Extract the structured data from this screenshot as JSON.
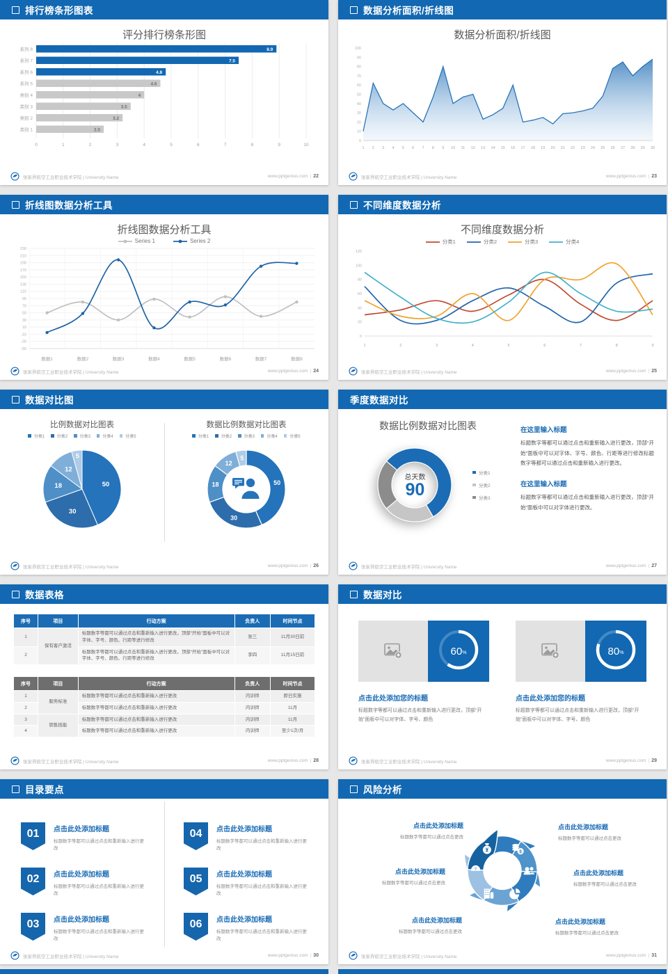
{
  "accent": "#1268b2",
  "footer": {
    "org": "张家界航空工业职业技术学院 | University Name",
    "site": "www.pptgenius.com",
    "sep": "|"
  },
  "slides": [
    {
      "header": "排行榜条形图表",
      "page": "22"
    },
    {
      "header": "数据分析面积/折线图",
      "page": "23"
    },
    {
      "header": "折线图数据分析工具",
      "page": "24"
    },
    {
      "header": "不同维度数据分析",
      "page": "25"
    },
    {
      "header": "数据对比图",
      "page": "26"
    },
    {
      "header": "季度数据对比",
      "page": "27",
      "blocks": [
        {
          "heading": "在这里输入标题",
          "body": "标题数字等都可以通过点击和重新输入进行更改，顶部“开始”面板中可以对字体、字号、颜色、行距等进行修改标题数字等都可以通过点击和重新输入进行更改。"
        },
        {
          "heading": "在这里输入标题",
          "body": "标题数字等都可以通过点击和重新输入进行更改，顶部“开始”面板中可以对字体进行更改。"
        }
      ]
    },
    {
      "header": "数据表格",
      "page": "28",
      "table1": {
        "columns": [
          "序号",
          "项目",
          "行动方案",
          "负责人",
          "时间节点"
        ],
        "rows": [
          {
            "no": "1",
            "project": "保有客户激活",
            "plan": "标题数字等都可以通过点击和重新输入进行更改，顶部“开始”面板中可以对字体、字号、颜色、行距等进行修改",
            "owner": "张三",
            "deadline": "11月30日前"
          },
          {
            "no": "2",
            "plan": "标题数字等都可以通过点击和重新输入进行更改，顶部“开始”面板中可以对字体、字号、颜色、行距等进行修改",
            "owner": "李四",
            "deadline": "11月15日前"
          }
        ]
      },
      "table2": {
        "columns": [
          "序号",
          "项目",
          "行动方案",
          "负责人",
          "时间节点"
        ],
        "rows": [
          {
            "no": "1",
            "project": "服务标准",
            "plan": "标题数字等都可以通过点击和重新输入进行更改",
            "owner": "内训师",
            "deadline": "即日实施"
          },
          {
            "no": "2",
            "plan": "标题数字等都可以通过点击和重新输入进行更改",
            "owner": "内训师",
            "deadline": "11月"
          },
          {
            "no": "3",
            "project": "销售技能",
            "plan": "标题数字等都可以通过点击和重新输入进行更改",
            "owner": "内训师",
            "deadline": "11月"
          },
          {
            "no": "4",
            "plan": "标题数字等都可以通过点击和重新输入进行更改",
            "owner": "内训师",
            "deadline": "至少1次/月"
          }
        ]
      }
    },
    {
      "header": "数据对比",
      "page": "29",
      "cards": [
        {
          "title": "点击此处添加您的标题",
          "body": "标题数字等都可以通过点击和重新输入进行更改，顶部“开始”面板中可以对字体、字号、颜色"
        },
        {
          "title": "点击此处添加您的标题",
          "body": "标题数字等都可以通过点击和重新输入进行更改，顶部“开始”面板中可以对字体、字号、颜色"
        }
      ]
    },
    {
      "header": "目录要点",
      "page": "30",
      "items": [
        {
          "num": "01",
          "title": "点击此处添加标题",
          "desc": "标题数字等都可以通过点击和重新输入进行更改"
        },
        {
          "num": "04",
          "title": "点击此处添加标题",
          "desc": "标题数字等都可以通过点击和重新输入进行更改"
        },
        {
          "num": "02",
          "title": "点击此处添加标题",
          "desc": "标题数字等都可以通过点击和重新输入进行更改"
        },
        {
          "num": "05",
          "title": "点击此处添加标题",
          "desc": "标题数字等都可以通过点击和重新输入进行更改"
        },
        {
          "num": "03",
          "title": "点击此处添加标题",
          "desc": "标题数字等都可以通过点击和重新输入进行更改"
        },
        {
          "num": "06",
          "title": "点击此处添加标题",
          "desc": "标题数字等都可以通过点击和重新输入进行更改"
        }
      ]
    },
    {
      "header": "风险分析",
      "page": "31",
      "items": [
        {
          "pos": "top-left",
          "icon": "money-bag-icon",
          "title": "点击此处添加标题",
          "desc": "标题数字等都可以通过点击更改"
        },
        {
          "pos": "top-right",
          "icon": "coins-icon",
          "title": "点击此处添加标题",
          "desc": "标题数字等都可以通过点击更改"
        },
        {
          "pos": "mid-left",
          "icon": "helmet-icon",
          "title": "点击此处添加标题",
          "desc": "标题数字等都可以通过点击更改"
        },
        {
          "pos": "mid-right",
          "icon": "people-icon",
          "title": "点击此处添加标题",
          "desc": "标题数字等都可以通过点击更改"
        },
        {
          "pos": "bottom-left",
          "icon": "building-icon",
          "title": "点击此处添加标题",
          "desc": "标题数字等都可以通过点击更改"
        },
        {
          "pos": "bottom-right",
          "icon": "pie-chart-icon",
          "title": "点击此处添加标题",
          "desc": "标题数字等都可以通过点击更改"
        }
      ]
    }
  ],
  "chart_data": [
    {
      "type": "bar",
      "orientation": "horizontal",
      "title": "评分排行榜条形图",
      "categories": [
        "系列 8",
        "系列 7",
        "系列 6",
        "系列 5",
        "类别 4",
        "类别 3",
        "类别 2",
        "类别 1"
      ],
      "values": [
        8.9,
        7.5,
        4.8,
        4.6,
        4,
        3.5,
        3.2,
        2.5
      ],
      "colors": [
        "#1268b2",
        "#1268b2",
        "#1268b2",
        "#c8c8c8",
        "#c8c8c8",
        "#c8c8c8",
        "#c8c8c8",
        "#c8c8c8"
      ],
      "xlim": [
        0,
        10
      ],
      "xticks": [
        0,
        1,
        2,
        3,
        4,
        5,
        6,
        7,
        8,
        9,
        10
      ],
      "grid": true
    },
    {
      "type": "area",
      "title": "数据分析面积/折线图",
      "x": [
        1,
        2,
        3,
        4,
        5,
        6,
        7,
        8,
        9,
        10,
        11,
        12,
        13,
        14,
        15,
        16,
        17,
        18,
        19,
        20,
        21,
        22,
        23,
        24,
        25,
        26,
        27,
        28,
        29,
        30
      ],
      "values": [
        10,
        62,
        40,
        33,
        40,
        30,
        20,
        47,
        80,
        40,
        47,
        50,
        23,
        28,
        35,
        60,
        20,
        22,
        25,
        18,
        29,
        30,
        32,
        35,
        48,
        78,
        85,
        70,
        80,
        88
      ],
      "ylim": [
        0,
        100
      ],
      "ytick_step": 10,
      "line_color": "#2a74b8"
    },
    {
      "type": "line",
      "title": "折线图数据分析工具",
      "categories": [
        "数据1",
        "数据2",
        "数据3",
        "数据4",
        "数据5",
        "数据6",
        "数据7",
        "数据8"
      ],
      "ylim": [
        -50,
        230
      ],
      "ytick_step": 20,
      "legend_position": "top",
      "grid": true,
      "series": [
        {
          "name": "Series 1",
          "color": "#c0c0c0",
          "marker": true,
          "values": [
            50,
            80,
            30,
            88,
            38,
            95,
            40,
            80
          ]
        },
        {
          "name": "Series 2",
          "color": "#1f63a8",
          "marker": true,
          "values": [
            -5,
            48,
            198,
            8,
            80,
            72,
            180,
            188
          ]
        }
      ]
    },
    {
      "type": "line",
      "title": "不同维度数据分析",
      "x": [
        1,
        2,
        3,
        4,
        5,
        6,
        7,
        8,
        9
      ],
      "ylim": [
        0,
        120
      ],
      "ytick_step": 20,
      "legend_position": "top",
      "grid": false,
      "series": [
        {
          "name": "分类1",
          "color": "#bf4b32",
          "values": [
            30,
            37,
            50,
            35,
            58,
            80,
            45,
            22,
            50
          ]
        },
        {
          "name": "分类2",
          "color": "#2265ae",
          "values": [
            70,
            22,
            22,
            50,
            68,
            42,
            20,
            75,
            88
          ]
        },
        {
          "name": "分类3",
          "color": "#efa32f",
          "values": [
            50,
            28,
            28,
            60,
            22,
            80,
            80,
            102,
            30
          ]
        },
        {
          "name": "分类4",
          "color": "#45b1c9",
          "values": [
            90,
            55,
            25,
            20,
            48,
            90,
            60,
            35,
            38
          ]
        }
      ]
    },
    {
      "type": "pie",
      "title": "比例数据对比图表",
      "labels": [
        "分类1",
        "分类2",
        "分类3",
        "分类4",
        "分类5"
      ],
      "values": [
        50,
        30,
        18,
        12,
        5
      ],
      "colors": [
        "#2473bb",
        "#2d6dab",
        "#4e8fc7",
        "#7fafd9",
        "#afcbe7"
      ]
    },
    {
      "type": "donut",
      "title": "数据比例数据对比图表",
      "labels": [
        "分类1",
        "分类2",
        "分类3",
        "分类4",
        "分类5"
      ],
      "values": [
        50,
        30,
        18,
        12,
        5
      ],
      "colors": [
        "#2473bb",
        "#2d6dab",
        "#4e8fc7",
        "#7fafd9",
        "#afcbe7"
      ],
      "center_icon": "person-chat-icon"
    },
    {
      "type": "donut",
      "title": "数据比例数据对比图表",
      "labels": [
        "分类1",
        "分类2",
        "分类3"
      ],
      "values": [
        50,
        20,
        20
      ],
      "colors": [
        "#1b6cb5",
        "#c6c6c6",
        "#8c8c8c"
      ],
      "start": -140,
      "center_label": "总天数",
      "center_value": "90"
    },
    {
      "type": "progress",
      "values": [
        60,
        80
      ],
      "unit": "%",
      "ring_color": "#ffffff",
      "bg_color": "#1268b2"
    }
  ]
}
